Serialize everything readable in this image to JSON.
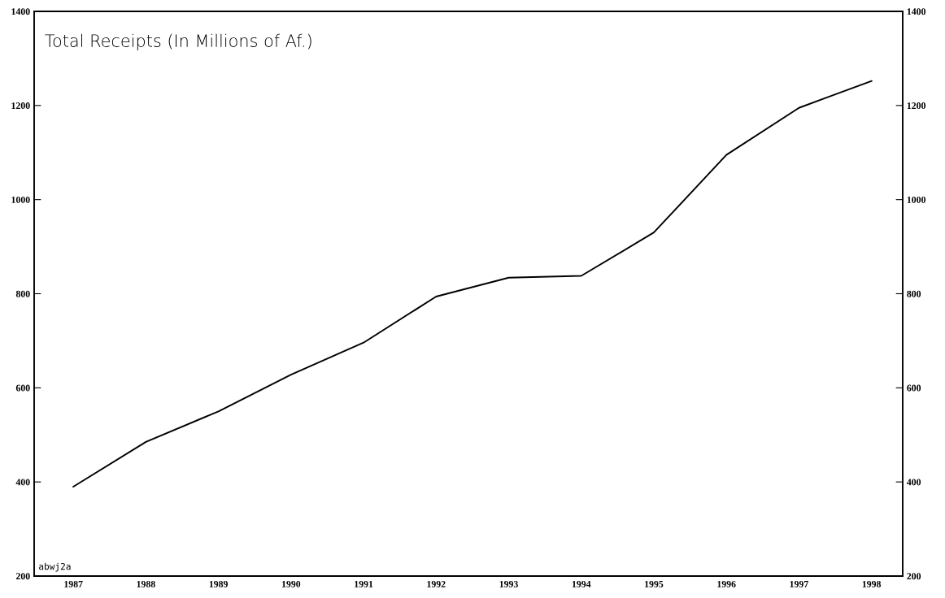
{
  "chart_data": {
    "type": "line",
    "title": "Total Receipts (In Millions of Af.)",
    "categories": [
      "1987",
      "1988",
      "1989",
      "1990",
      "1991",
      "1992",
      "1993",
      "1994",
      "1995",
      "1996",
      "1997",
      "1998"
    ],
    "series": [
      {
        "color": "#000000",
        "values": [
          390,
          485,
          550,
          628,
          696,
          794,
          834,
          838,
          930,
          1095,
          1195,
          1252
        ]
      }
    ],
    "ylim": [
      200,
      1400
    ],
    "yticks": [
      200,
      400,
      600,
      800,
      1000,
      1200,
      1400
    ],
    "y2lim": [
      200,
      1400
    ],
    "y2ticks": [
      200,
      400,
      600,
      800,
      1000,
      1200,
      1400
    ],
    "annotations": [
      "abwj2a"
    ],
    "marker": "none",
    "line_style": "solid"
  }
}
